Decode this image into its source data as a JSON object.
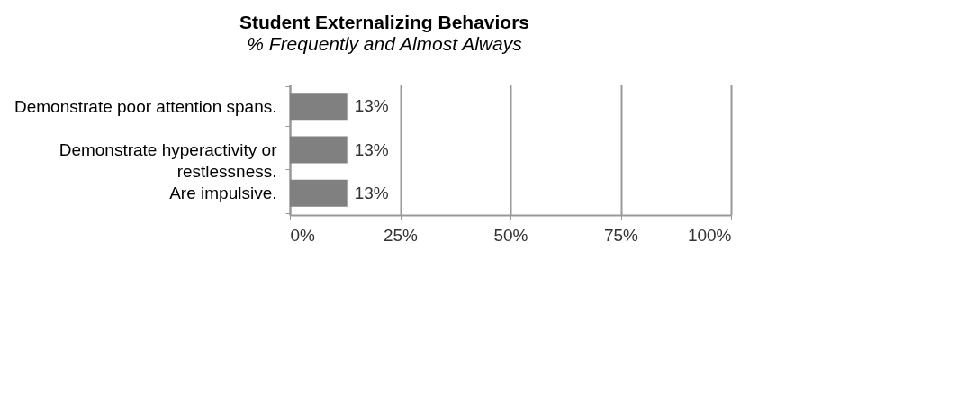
{
  "chart_data": {
    "type": "bar",
    "orientation": "horizontal",
    "title": "Student Externalizing Behaviors",
    "subtitle": "% Frequently and Almost Always",
    "categories": [
      "Demonstrate poor attention spans.",
      "Demonstrate hyperactivity or restlessness.",
      "Are impulsive."
    ],
    "values": [
      13,
      13,
      13
    ],
    "color": "#808080",
    "value_labels": [
      "13%",
      "13%",
      "13%"
    ],
    "xlim": [
      0,
      100
    ],
    "xticks": [
      {
        "value": 0,
        "label": "0%"
      },
      {
        "value": 25,
        "label": "25%"
      },
      {
        "value": 50,
        "label": "50%"
      },
      {
        "value": 75,
        "label": "75%"
      },
      {
        "value": 100,
        "label": "100%"
      }
    ],
    "grid": "x"
  }
}
